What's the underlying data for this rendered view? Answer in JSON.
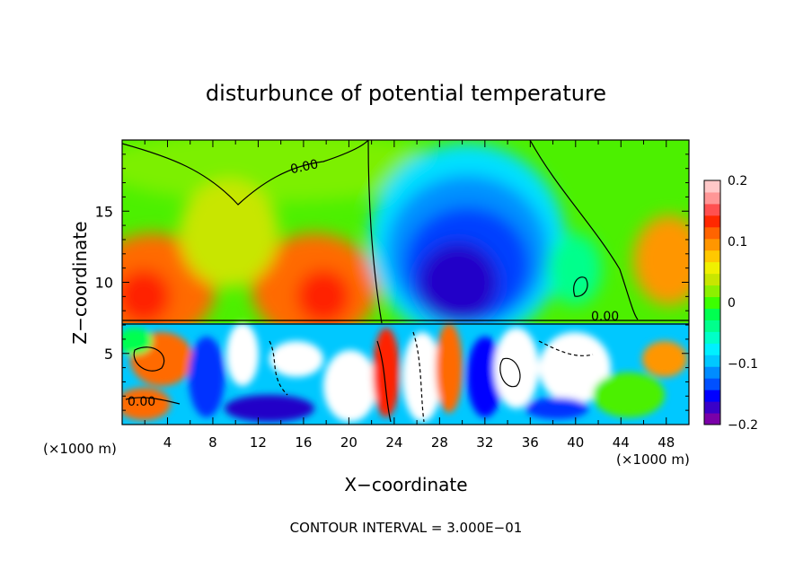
{
  "chart_data": {
    "type": "heatmap",
    "title": "disturbunce of potential temperature",
    "xlabel": "X−coordinate",
    "ylabel": "Z−coordinate",
    "x_unit_left": "(×1000 m)",
    "x_unit_right": "(×1000 m)",
    "footnote": "CONTOUR INTERVAL = 3.000E−01",
    "xlim": [
      0,
      50
    ],
    "ylim": [
      0,
      20
    ],
    "x_ticks": [
      4,
      8,
      12,
      16,
      20,
      24,
      28,
      32,
      36,
      40,
      44,
      48
    ],
    "y_ticks": [
      5,
      10,
      15
    ],
    "contour_labels": [
      "0.00",
      "0.00",
      "0.00"
    ],
    "colorbar": {
      "range": [
        -0.2,
        0.2
      ],
      "tick_labels": [
        "0.2",
        "0.1",
        "0",
        "−0.1",
        "−0.2"
      ],
      "tick_values": [
        0.2,
        0.1,
        0,
        -0.1,
        -0.2
      ],
      "colors": [
        "#7a00a8",
        "#3a00c8",
        "#0000ff",
        "#0050ff",
        "#008cff",
        "#00c8ff",
        "#00f0ff",
        "#00ffc8",
        "#00ff8c",
        "#00ff50",
        "#3cff00",
        "#8cf000",
        "#c8e600",
        "#f0f000",
        "#ffc800",
        "#ff9600",
        "#ff6400",
        "#ff2800",
        "#ff5050",
        "#ff9696",
        "#ffc8c8"
      ]
    },
    "field_description_levels": {
      "upper_background": 0.02,
      "central_cold_core": -0.17,
      "left_warm_lobe": 0.14,
      "right_warm_lobe": 0.12
    }
  }
}
